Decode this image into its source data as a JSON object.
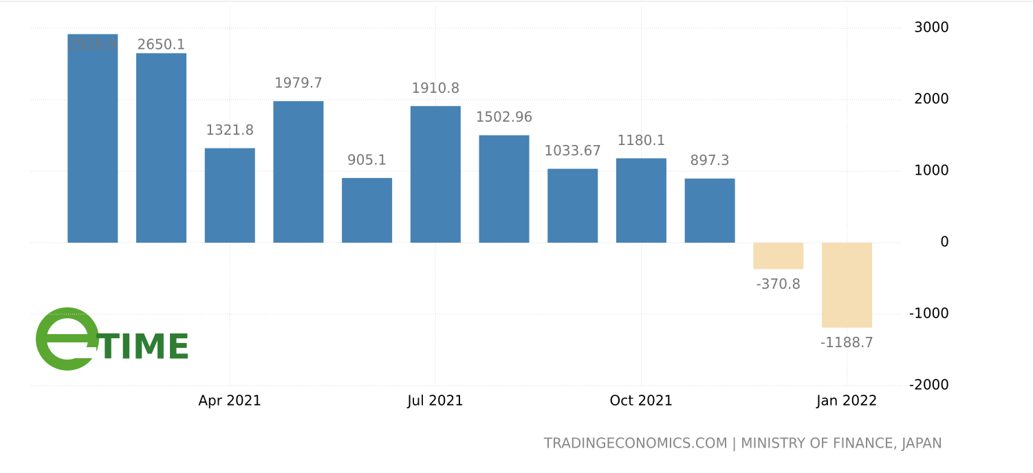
{
  "chart_data": {
    "type": "bar",
    "categories": [
      null,
      null,
      "Apr 2021",
      null,
      null,
      "Jul 2021",
      null,
      null,
      "Oct 2021",
      null,
      null,
      "Jan 2022"
    ],
    "values": [
      2916.9,
      2650.1,
      1321.8,
      1979.7,
      905.1,
      1910.8,
      1502.96,
      1033.67,
      1180.1,
      897.3,
      -370.8,
      -1188.7
    ],
    "color": "#4682b4",
    "negative_color": "#f5deb3",
    "ylim": [
      -2000,
      3000
    ],
    "yticks": [
      -2000,
      -1000,
      0,
      1000,
      2000,
      3000
    ],
    "grid": true,
    "y_axis_side": "right",
    "source": "TRADINGECONOMICS.COM | MINISTRY OF FINANCE, JAPAN",
    "logo": "TIME"
  }
}
